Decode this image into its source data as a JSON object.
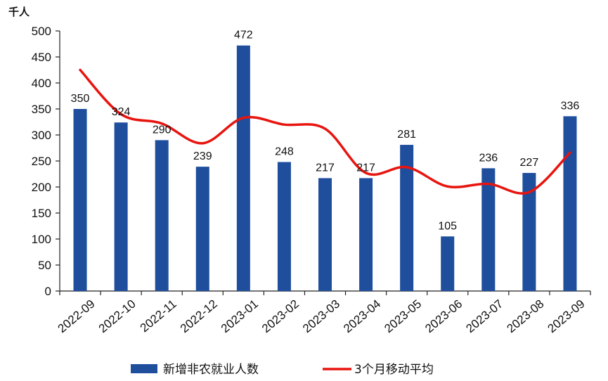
{
  "chart_data": {
    "type": "bar",
    "ylabel": "千人",
    "ylim": [
      0,
      500
    ],
    "yticks": [
      0,
      50,
      100,
      150,
      200,
      250,
      300,
      350,
      400,
      450,
      500
    ],
    "categories": [
      "2022-09",
      "2022-10",
      "2022-11",
      "2022-12",
      "2023-01",
      "2023-02",
      "2023-03",
      "2023-04",
      "2023-05",
      "2023-06",
      "2023-07",
      "2023-08",
      "2023-09"
    ],
    "series": [
      {
        "name": "新增非农就业人数",
        "type": "bar",
        "color": "#1f4e9c",
        "values": [
          350,
          324,
          290,
          239,
          472,
          248,
          217,
          217,
          281,
          105,
          236,
          227,
          336
        ]
      },
      {
        "name": "3个月移动平均",
        "type": "line",
        "color": "#e8140f",
        "values": [
          425,
          340,
          322,
          284,
          333,
          320,
          312,
          227,
          238,
          201,
          206,
          190,
          266
        ]
      }
    ],
    "grid": false,
    "legend_position": "bottom"
  }
}
